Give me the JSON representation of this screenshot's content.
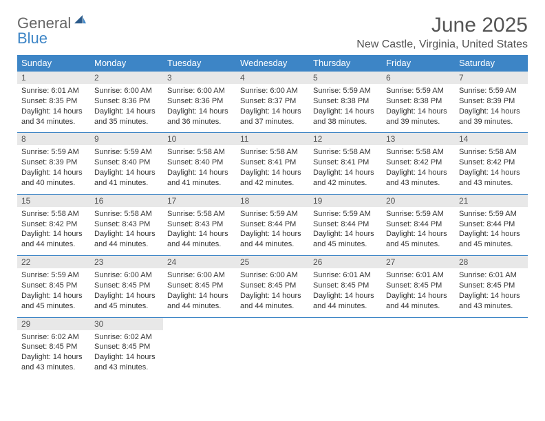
{
  "logo": {
    "text1": "General",
    "text2": "Blue",
    "color_general": "#666666",
    "color_blue": "#3d85c6"
  },
  "header": {
    "title": "June 2025",
    "location": "New Castle, Virginia, United States"
  },
  "styling": {
    "header_bg": "#3d85c6",
    "header_text": "#ffffff",
    "daynum_bg": "#e8e8e8",
    "border_color": "#3d85c6",
    "page_bg": "#ffffff"
  },
  "dayNames": [
    "Sunday",
    "Monday",
    "Tuesday",
    "Wednesday",
    "Thursday",
    "Friday",
    "Saturday"
  ],
  "weeks": [
    [
      {
        "n": "1",
        "sunrise": "6:01 AM",
        "sunset": "8:35 PM",
        "daylight": "14 hours and 34 minutes."
      },
      {
        "n": "2",
        "sunrise": "6:00 AM",
        "sunset": "8:36 PM",
        "daylight": "14 hours and 35 minutes."
      },
      {
        "n": "3",
        "sunrise": "6:00 AM",
        "sunset": "8:36 PM",
        "daylight": "14 hours and 36 minutes."
      },
      {
        "n": "4",
        "sunrise": "6:00 AM",
        "sunset": "8:37 PM",
        "daylight": "14 hours and 37 minutes."
      },
      {
        "n": "5",
        "sunrise": "5:59 AM",
        "sunset": "8:38 PM",
        "daylight": "14 hours and 38 minutes."
      },
      {
        "n": "6",
        "sunrise": "5:59 AM",
        "sunset": "8:38 PM",
        "daylight": "14 hours and 39 minutes."
      },
      {
        "n": "7",
        "sunrise": "5:59 AM",
        "sunset": "8:39 PM",
        "daylight": "14 hours and 39 minutes."
      }
    ],
    [
      {
        "n": "8",
        "sunrise": "5:59 AM",
        "sunset": "8:39 PM",
        "daylight": "14 hours and 40 minutes."
      },
      {
        "n": "9",
        "sunrise": "5:59 AM",
        "sunset": "8:40 PM",
        "daylight": "14 hours and 41 minutes."
      },
      {
        "n": "10",
        "sunrise": "5:58 AM",
        "sunset": "8:40 PM",
        "daylight": "14 hours and 41 minutes."
      },
      {
        "n": "11",
        "sunrise": "5:58 AM",
        "sunset": "8:41 PM",
        "daylight": "14 hours and 42 minutes."
      },
      {
        "n": "12",
        "sunrise": "5:58 AM",
        "sunset": "8:41 PM",
        "daylight": "14 hours and 42 minutes."
      },
      {
        "n": "13",
        "sunrise": "5:58 AM",
        "sunset": "8:42 PM",
        "daylight": "14 hours and 43 minutes."
      },
      {
        "n": "14",
        "sunrise": "5:58 AM",
        "sunset": "8:42 PM",
        "daylight": "14 hours and 43 minutes."
      }
    ],
    [
      {
        "n": "15",
        "sunrise": "5:58 AM",
        "sunset": "8:42 PM",
        "daylight": "14 hours and 44 minutes."
      },
      {
        "n": "16",
        "sunrise": "5:58 AM",
        "sunset": "8:43 PM",
        "daylight": "14 hours and 44 minutes."
      },
      {
        "n": "17",
        "sunrise": "5:58 AM",
        "sunset": "8:43 PM",
        "daylight": "14 hours and 44 minutes."
      },
      {
        "n": "18",
        "sunrise": "5:59 AM",
        "sunset": "8:44 PM",
        "daylight": "14 hours and 44 minutes."
      },
      {
        "n": "19",
        "sunrise": "5:59 AM",
        "sunset": "8:44 PM",
        "daylight": "14 hours and 45 minutes."
      },
      {
        "n": "20",
        "sunrise": "5:59 AM",
        "sunset": "8:44 PM",
        "daylight": "14 hours and 45 minutes."
      },
      {
        "n": "21",
        "sunrise": "5:59 AM",
        "sunset": "8:44 PM",
        "daylight": "14 hours and 45 minutes."
      }
    ],
    [
      {
        "n": "22",
        "sunrise": "5:59 AM",
        "sunset": "8:45 PM",
        "daylight": "14 hours and 45 minutes."
      },
      {
        "n": "23",
        "sunrise": "6:00 AM",
        "sunset": "8:45 PM",
        "daylight": "14 hours and 45 minutes."
      },
      {
        "n": "24",
        "sunrise": "6:00 AM",
        "sunset": "8:45 PM",
        "daylight": "14 hours and 44 minutes."
      },
      {
        "n": "25",
        "sunrise": "6:00 AM",
        "sunset": "8:45 PM",
        "daylight": "14 hours and 44 minutes."
      },
      {
        "n": "26",
        "sunrise": "6:01 AM",
        "sunset": "8:45 PM",
        "daylight": "14 hours and 44 minutes."
      },
      {
        "n": "27",
        "sunrise": "6:01 AM",
        "sunset": "8:45 PM",
        "daylight": "14 hours and 44 minutes."
      },
      {
        "n": "28",
        "sunrise": "6:01 AM",
        "sunset": "8:45 PM",
        "daylight": "14 hours and 43 minutes."
      }
    ],
    [
      {
        "n": "29",
        "sunrise": "6:02 AM",
        "sunset": "8:45 PM",
        "daylight": "14 hours and 43 minutes."
      },
      {
        "n": "30",
        "sunrise": "6:02 AM",
        "sunset": "8:45 PM",
        "daylight": "14 hours and 43 minutes."
      },
      null,
      null,
      null,
      null,
      null
    ]
  ],
  "labels": {
    "sunrise": "Sunrise:",
    "sunset": "Sunset:",
    "daylight": "Daylight:"
  }
}
